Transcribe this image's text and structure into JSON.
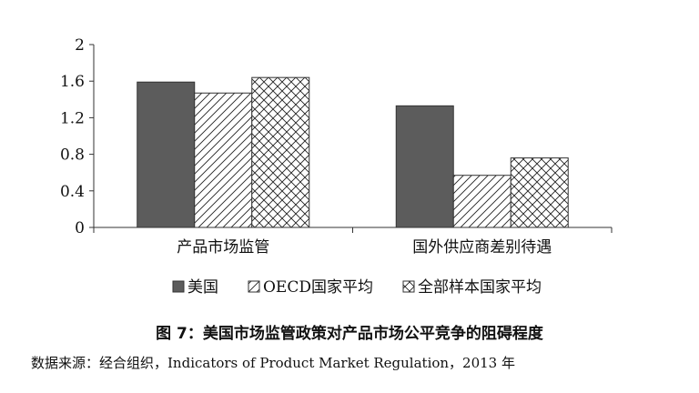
{
  "chart_data": {
    "type": "bar",
    "categories": [
      "产品市场监管",
      "国外供应商差别待遇"
    ],
    "series": [
      {
        "name": "美国",
        "values": [
          1.59,
          1.33
        ],
        "fill": "#5c5c5c",
        "pattern": "solid"
      },
      {
        "name": "OECD国家平均",
        "values": [
          1.47,
          0.57
        ],
        "fill": "#ffffff",
        "pattern": "diagonal"
      },
      {
        "name": "全部样本国家平均",
        "values": [
          1.64,
          0.76
        ],
        "fill": "#ffffff",
        "pattern": "crosshatch"
      }
    ],
    "ylim": [
      0,
      2
    ],
    "yticks": [
      "0",
      "0.4",
      "0.8",
      "1.2",
      "1.6",
      "2"
    ],
    "xlabel": "",
    "ylabel": "",
    "grid": false,
    "legend_position": "bottom"
  },
  "caption": "图 7：美国市场监管政策对产品市场公平竞争的阻碍程度",
  "source": "数据来源：经合组织，Indicators of Product Market Regulation，2013 年"
}
